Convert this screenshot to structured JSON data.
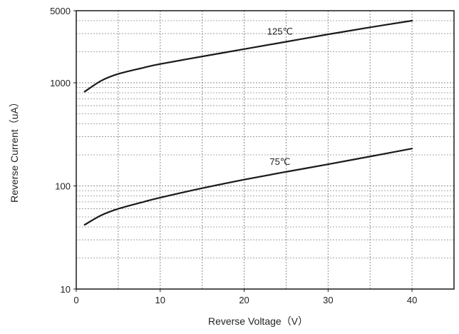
{
  "chart_data": {
    "type": "line",
    "title": "",
    "xlabel": "Reverse Voltage（V）",
    "ylabel": "Reverse Current（uA）",
    "xlim": [
      0,
      45
    ],
    "ylim": [
      10,
      5000
    ],
    "y_scale": "log",
    "grid": true,
    "x_ticks": [
      0,
      10,
      20,
      30,
      40
    ],
    "y_ticks": [
      10,
      100,
      1000,
      5000
    ],
    "x_tick_labels": [
      "0",
      "10",
      "20",
      "30",
      "40"
    ],
    "y_tick_labels": [
      "10",
      "100",
      "1000",
      "5000"
    ],
    "series": [
      {
        "name": "125℃",
        "x": [
          1,
          3,
          5,
          8,
          10,
          15,
          20,
          25,
          30,
          35,
          40
        ],
        "y": [
          820,
          1050,
          1220,
          1400,
          1520,
          1800,
          2120,
          2500,
          2950,
          3450,
          4000
        ]
      },
      {
        "name": "75℃",
        "x": [
          1,
          3,
          5,
          8,
          10,
          15,
          20,
          25,
          30,
          35,
          40
        ],
        "y": [
          42,
          52,
          60,
          70,
          77,
          95,
          115,
          137,
          162,
          193,
          230
        ]
      }
    ],
    "colors": {
      "curve": "#1a1a1a",
      "axis": "#1a1a1a",
      "grid": "#8c8c8c",
      "text": "#222222",
      "background": "#ffffff"
    }
  }
}
